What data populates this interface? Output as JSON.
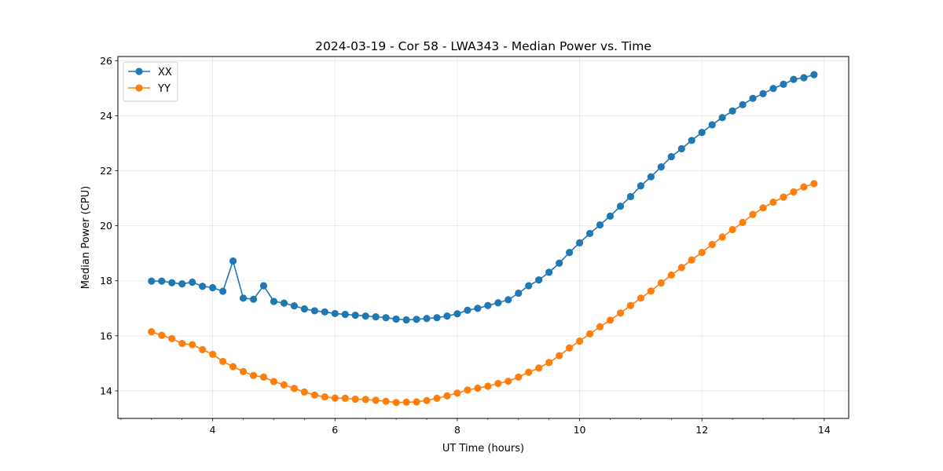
{
  "chart_data": {
    "type": "line",
    "title": "2024-03-19 - Cor 58 - LWA343 - Median Power vs. Time",
    "xlabel": "UT Time (hours)",
    "ylabel": "Median Power (CPU)",
    "xlim": [
      2.45,
      14.4
    ],
    "ylim": [
      13.0,
      26.15
    ],
    "xticks": [
      4,
      6,
      8,
      10,
      12,
      14
    ],
    "yticks": [
      14,
      16,
      18,
      20,
      22,
      24,
      26
    ],
    "grid": true,
    "legend_position": "top-left",
    "x": [
      3.0,
      3.167,
      3.333,
      3.5,
      3.667,
      3.833,
      4.0,
      4.167,
      4.333,
      4.5,
      4.667,
      4.833,
      5.0,
      5.167,
      5.333,
      5.5,
      5.667,
      5.833,
      6.0,
      6.167,
      6.333,
      6.5,
      6.667,
      6.833,
      7.0,
      7.167,
      7.333,
      7.5,
      7.667,
      7.833,
      8.0,
      8.167,
      8.333,
      8.5,
      8.667,
      8.833,
      9.0,
      9.167,
      9.333,
      9.5,
      9.667,
      9.833,
      10.0,
      10.167,
      10.333,
      10.5,
      10.667,
      10.833,
      11.0,
      11.167,
      11.333,
      11.5,
      11.667,
      11.833,
      12.0,
      12.167,
      12.333,
      12.5,
      12.667,
      12.833,
      13.0,
      13.167,
      13.333,
      13.5,
      13.667,
      13.833
    ],
    "series": [
      {
        "name": "XX",
        "color": "#1f77b4",
        "values": [
          17.99,
          17.99,
          17.93,
          17.89,
          17.95,
          17.8,
          17.75,
          17.62,
          18.72,
          17.37,
          17.33,
          17.82,
          17.25,
          17.19,
          17.09,
          16.98,
          16.91,
          16.87,
          16.81,
          16.78,
          16.75,
          16.72,
          16.69,
          16.66,
          16.61,
          16.58,
          16.6,
          16.63,
          16.66,
          16.72,
          16.8,
          16.93,
          17.0,
          17.1,
          17.2,
          17.31,
          17.55,
          17.82,
          18.03,
          18.31,
          18.64,
          19.03,
          19.38,
          19.72,
          20.03,
          20.35,
          20.71,
          21.06,
          21.45,
          21.78,
          22.14,
          22.51,
          22.8,
          23.1,
          23.39,
          23.67,
          23.93,
          24.17,
          24.4,
          24.63,
          24.8,
          24.99,
          25.14,
          25.32,
          25.38,
          25.49
        ]
      },
      {
        "name": "YY",
        "color": "#ff7f0e",
        "values": [
          16.15,
          16.02,
          15.9,
          15.72,
          15.68,
          15.5,
          15.33,
          15.07,
          14.88,
          14.7,
          14.56,
          14.5,
          14.34,
          14.22,
          14.09,
          13.96,
          13.85,
          13.78,
          13.74,
          13.73,
          13.7,
          13.69,
          13.66,
          13.62,
          13.58,
          13.59,
          13.6,
          13.65,
          13.73,
          13.82,
          13.92,
          14.03,
          14.1,
          14.17,
          14.27,
          14.35,
          14.5,
          14.68,
          14.83,
          15.03,
          15.28,
          15.56,
          15.81,
          16.07,
          16.33,
          16.57,
          16.83,
          17.1,
          17.37,
          17.63,
          17.92,
          18.21,
          18.48,
          18.76,
          19.03,
          19.32,
          19.59,
          19.86,
          20.12,
          20.41,
          20.65,
          20.86,
          21.04,
          21.23,
          21.41,
          21.53
        ]
      }
    ]
  }
}
